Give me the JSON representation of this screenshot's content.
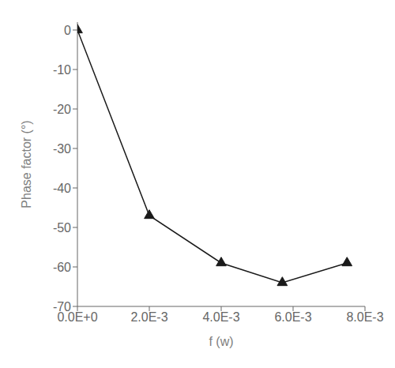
{
  "chart_data": {
    "type": "line",
    "x": [
      0.0,
      0.002,
      0.004,
      0.0057,
      0.0075
    ],
    "values": [
      0,
      -47,
      -59,
      -64,
      -59
    ],
    "xlim": [
      0.0,
      0.008
    ],
    "ylim": [
      -70,
      2
    ],
    "xticks": [
      {
        "value": 0.0,
        "label": "0.0E+0"
      },
      {
        "value": 0.002,
        "label": "2.0E-3"
      },
      {
        "value": 0.004,
        "label": "4.0E-3"
      },
      {
        "value": 0.006,
        "label": "6.0E-3"
      },
      {
        "value": 0.008,
        "label": "8.0E-3"
      }
    ],
    "yticks": [
      0,
      -10,
      -20,
      -30,
      -40,
      -50,
      -60,
      -70
    ],
    "xlabel": "f (w)",
    "ylabel": "Phase factor (°)",
    "color": "#1a1a1a",
    "marker": "triangle",
    "grid": false
  }
}
